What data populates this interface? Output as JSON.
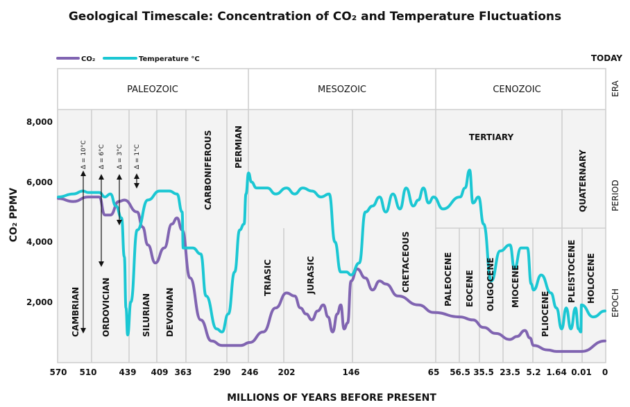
{
  "title": "Geological Timescale: Concentration of CO₂ and Temperature Fluctuations",
  "legend": [
    {
      "label": "CO₂",
      "color": "#8064b1"
    },
    {
      "label": "Temperature °C",
      "color": "#1bc7d3"
    }
  ],
  "today_label": "TODAY",
  "right_labels": {
    "era": "ERA",
    "period": "PERIOD",
    "epoch": "EPOCH"
  },
  "eras": [
    "PALEOZOIC",
    "MESOZOIC",
    "CENOZOIC"
  ],
  "periods": [
    "CARBONIFEROUS",
    "PERMIAN",
    "CAMBRIAN",
    "ORDOVICIAN",
    "SILURIAN",
    "DEVONIAN",
    "TRIASIC",
    "JURASIC",
    "CRETACEOUS",
    "TERTIARY",
    "QUATERNARY"
  ],
  "epochs": [
    "PALEOCENE",
    "EOCENE",
    "OLIGOCENE",
    "MIOCENE",
    "PLIOCENE",
    "PLEISTOCENE",
    "HOLOCENE"
  ],
  "deltas": [
    "Δ = 10°C",
    "Δ = 6°C",
    "Δ = 3°C",
    "Δ = 1°C"
  ],
  "chart_data": {
    "type": "line",
    "title": "Geological Timescale: Concentration of CO₂ and Temperature Fluctuations",
    "xlabel": "MILLIONS OF YEARS BEFORE PRESENT",
    "ylabel": "CO₂ PPMV",
    "x_ticks": [
      "570",
      "510",
      "439",
      "409",
      "363",
      "290",
      "246",
      "202",
      "146",
      "65",
      "56.5",
      "35.5",
      "23.5",
      "5.2",
      "1.64",
      "0.01",
      "0"
    ],
    "y_ticks": [
      "8,000",
      "6,000",
      "4,000",
      "2,000"
    ],
    "ylim": [
      0,
      8000
    ],
    "x_scale": "non-linear (period boundaries evenly spaced by tick label)",
    "series": [
      {
        "name": "CO₂",
        "color": "#8064b1",
        "points": [
          [
            570,
            5450
          ],
          [
            540,
            5350
          ],
          [
            510,
            5500
          ],
          [
            490,
            5500
          ],
          [
            480,
            4900
          ],
          [
            470,
            4900
          ],
          [
            455,
            5350
          ],
          [
            445,
            5400
          ],
          [
            430,
            5000
          ],
          [
            425,
            4500
          ],
          [
            420,
            3900
          ],
          [
            413,
            3300
          ],
          [
            400,
            3800
          ],
          [
            385,
            4600
          ],
          [
            375,
            4800
          ],
          [
            365,
            4400
          ],
          [
            350,
            2800
          ],
          [
            330,
            1400
          ],
          [
            310,
            700
          ],
          [
            290,
            550
          ],
          [
            260,
            550
          ],
          [
            246,
            650
          ],
          [
            230,
            1000
          ],
          [
            215,
            1800
          ],
          [
            202,
            2300
          ],
          [
            195,
            2200
          ],
          [
            190,
            1800
          ],
          [
            185,
            1600
          ],
          [
            180,
            1400
          ],
          [
            175,
            1700
          ],
          [
            170,
            1900
          ],
          [
            166,
            1500
          ],
          [
            162,
            1000
          ],
          [
            158,
            1600
          ],
          [
            155,
            1900
          ],
          [
            152,
            1100
          ],
          [
            149,
            1300
          ],
          [
            146,
            2700
          ],
          [
            140,
            3100
          ],
          [
            132,
            2800
          ],
          [
            125,
            2400
          ],
          [
            118,
            2700
          ],
          [
            112,
            2600
          ],
          [
            100,
            2200
          ],
          [
            80,
            1900
          ],
          [
            65,
            1650
          ],
          [
            56.5,
            1500
          ],
          [
            45,
            1400
          ],
          [
            35.5,
            1150
          ],
          [
            30,
            950
          ],
          [
            23.5,
            750
          ],
          [
            18,
            850
          ],
          [
            12,
            1050
          ],
          [
            8,
            800
          ],
          [
            5.2,
            550
          ],
          [
            3,
            400
          ],
          [
            1.64,
            350
          ],
          [
            0.01,
            350
          ],
          [
            0,
            700
          ]
        ]
      },
      {
        "name": "Temperature °C",
        "color": "#1bc7d3",
        "points": [
          [
            570,
            5500
          ],
          [
            540,
            5600
          ],
          [
            520,
            5700
          ],
          [
            510,
            5650
          ],
          [
            490,
            5650
          ],
          [
            480,
            5500
          ],
          [
            470,
            5600
          ],
          [
            460,
            5200
          ],
          [
            450,
            4800
          ],
          [
            445,
            3500
          ],
          [
            442,
            1800
          ],
          [
            439,
            900
          ],
          [
            436,
            2000
          ],
          [
            430,
            4400
          ],
          [
            420,
            5400
          ],
          [
            409,
            5700
          ],
          [
            390,
            5700
          ],
          [
            375,
            5600
          ],
          [
            365,
            5000
          ],
          [
            363,
            3800
          ],
          [
            345,
            3800
          ],
          [
            330,
            3600
          ],
          [
            320,
            2200
          ],
          [
            300,
            1100
          ],
          [
            290,
            1000
          ],
          [
            280,
            1600
          ],
          [
            270,
            3000
          ],
          [
            262,
            4400
          ],
          [
            255,
            4600
          ],
          [
            252,
            5600
          ],
          [
            248,
            6300
          ],
          [
            244,
            6000
          ],
          [
            238,
            5800
          ],
          [
            225,
            5800
          ],
          [
            215,
            5600
          ],
          [
            202,
            5800
          ],
          [
            195,
            5600
          ],
          [
            188,
            5800
          ],
          [
            180,
            5700
          ],
          [
            172,
            5500
          ],
          [
            165,
            5600
          ],
          [
            160,
            4000
          ],
          [
            155,
            3000
          ],
          [
            150,
            3000
          ],
          [
            146,
            2900
          ],
          [
            138,
            3300
          ],
          [
            132,
            5000
          ],
          [
            125,
            5200
          ],
          [
            118,
            5500
          ],
          [
            112,
            5000
          ],
          [
            105,
            5600
          ],
          [
            98,
            5100
          ],
          [
            92,
            5800
          ],
          [
            85,
            5200
          ],
          [
            80,
            5400
          ],
          [
            75,
            5800
          ],
          [
            70,
            5300
          ],
          [
            65,
            5500
          ],
          [
            62,
            5100
          ],
          [
            56.5,
            5500
          ],
          [
            52,
            5800
          ],
          [
            48,
            6400
          ],
          [
            45,
            5300
          ],
          [
            40,
            5500
          ],
          [
            35.5,
            4600
          ],
          [
            32,
            2700
          ],
          [
            28,
            3700
          ],
          [
            23.5,
            3900
          ],
          [
            20,
            3100
          ],
          [
            15,
            3800
          ],
          [
            10,
            3800
          ],
          [
            7,
            2600
          ],
          [
            5.2,
            2400
          ],
          [
            4,
            2900
          ],
          [
            2.5,
            2300
          ],
          [
            1.64,
            1800
          ],
          [
            1.3,
            1100
          ],
          [
            1.0,
            1800
          ],
          [
            0.7,
            1100
          ],
          [
            0.4,
            1800
          ],
          [
            0.2,
            1100
          ],
          [
            0.05,
            1000
          ],
          [
            0.01,
            1900
          ],
          [
            0.005,
            1500
          ],
          [
            0,
            1700
          ]
        ]
      }
    ]
  }
}
